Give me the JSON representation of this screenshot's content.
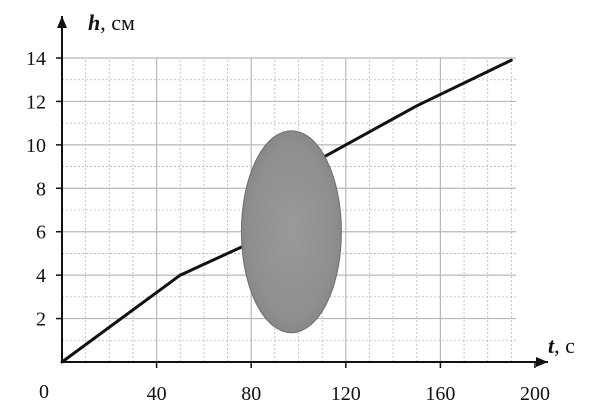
{
  "chart_data": {
    "type": "line",
    "title": "",
    "xlabel": "t, с",
    "ylabel": "h, см",
    "xlabel_var": "t",
    "xlabel_unit": ", с",
    "ylabel_var": "h",
    "ylabel_unit": ", см",
    "origin_label": "0",
    "xlim": [
      0,
      200
    ],
    "ylim": [
      0,
      14
    ],
    "x_ticks": [
      40,
      80,
      120,
      160,
      200
    ],
    "y_ticks": [
      2,
      4,
      6,
      8,
      10,
      12,
      14
    ],
    "grid": true,
    "series": [
      {
        "x": [
          0,
          50,
          80,
          100,
          150,
          190
        ],
        "y": [
          0,
          4,
          5.5,
          8.8,
          11.8,
          13.9
        ]
      }
    ],
    "occluding_blob": {
      "color": "#8f8f8f",
      "x_center": 97,
      "y_center": 6
    }
  },
  "colors": {
    "axis": "#111111",
    "grid": "#b8b8b8",
    "line": "#111111",
    "blob": "#8f8f8f"
  }
}
